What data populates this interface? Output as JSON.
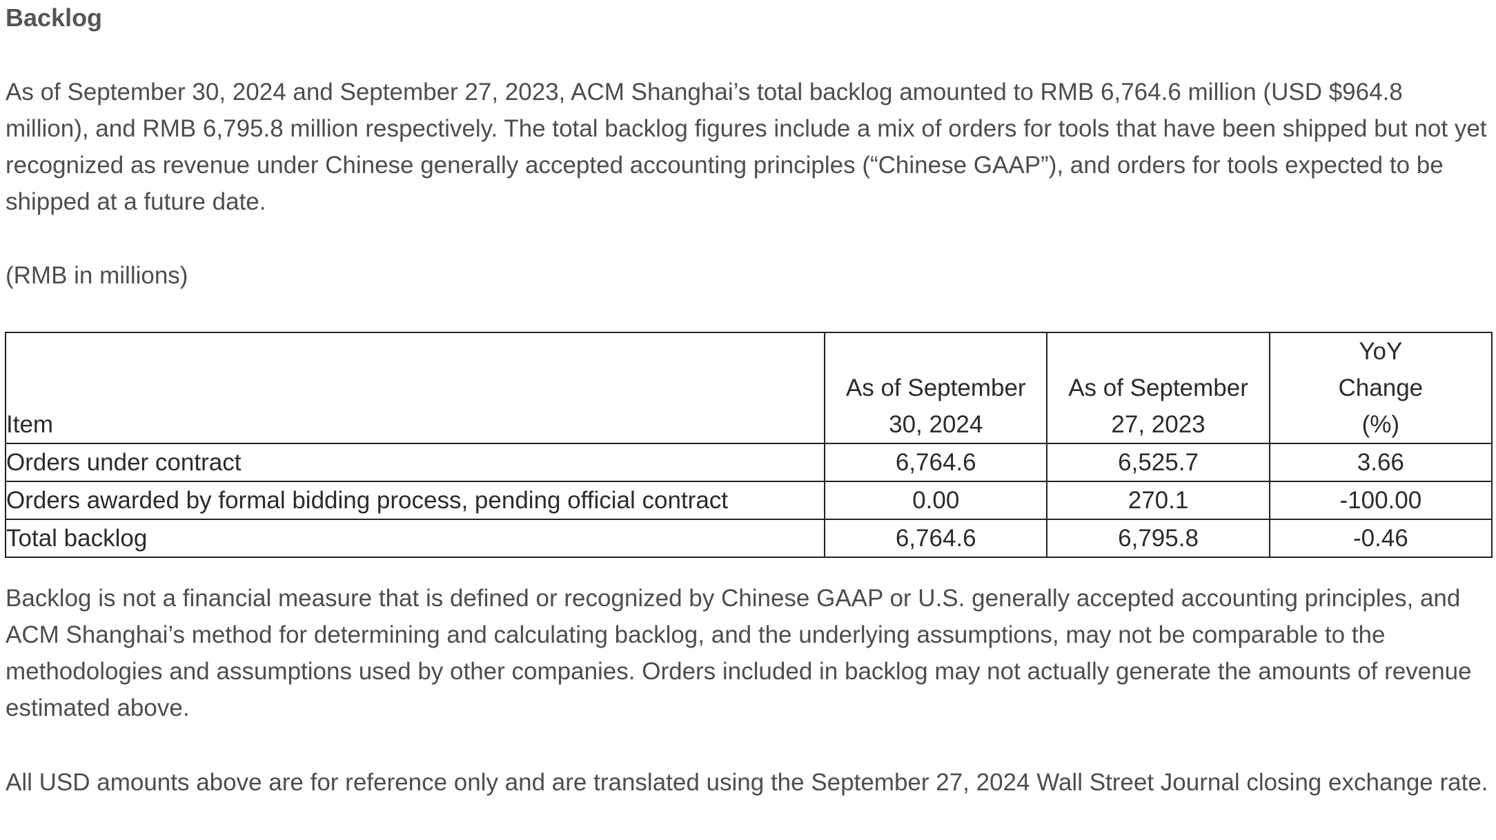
{
  "heading": "Backlog",
  "paragraphs": {
    "intro": "As of September 30, 2024 and September 27, 2023, ACM Shanghai’s total backlog amounted to RMB 6,764.6 million (USD $964.8 million), and RMB 6,795.8 million respectively. The total backlog figures include a mix of orders for tools that have been shipped but not yet recognized as revenue under Chinese generally accepted accounting principles (“Chinese GAAP”), and orders for tools expected to be shipped at a future date.",
    "units": "(RMB in millions)",
    "disclaimer": "Backlog is not a financial measure that is defined or recognized by Chinese GAAP or U.S. generally accepted accounting principles, and ACM Shanghai’s method for determining and calculating backlog, and the underlying assumptions, may not be comparable to the methodologies and assumptions used by other companies. Orders included in backlog may not actually generate the amounts of revenue estimated above.",
    "usd_note": "All USD amounts above are for reference only and are translated using the September 27, 2024 Wall Street Journal closing exchange rate."
  },
  "table": {
    "headers": [
      "Item",
      "As of September 30, 2024",
      "As of September 27, 2023",
      "YoY Change (%)"
    ],
    "rows": [
      [
        "Orders under contract",
        "6,764.6",
        "6,525.7",
        "3.66"
      ],
      [
        "Orders awarded by formal bidding process, pending official contract",
        "0.00",
        "270.1",
        "-100.00"
      ],
      [
        "Total backlog",
        "6,764.6",
        "6,795.8",
        "-0.46"
      ]
    ]
  }
}
